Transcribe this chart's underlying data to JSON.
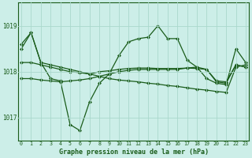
{
  "background_color": "#cceee8",
  "grid_color": "#aad8cc",
  "line_color": "#1a5c1a",
  "title": "Graphe pression niveau de la mer (hPa)",
  "ylim": [
    1016.5,
    1019.5
  ],
  "yticks": [
    1017,
    1018,
    1019
  ],
  "xticks": [
    0,
    1,
    2,
    3,
    4,
    5,
    6,
    7,
    8,
    9,
    10,
    11,
    12,
    13,
    14,
    15,
    16,
    17,
    18,
    19,
    20,
    21,
    22,
    23
  ],
  "line_a": [
    1018.6,
    1018.85,
    1018.2,
    1018.15,
    1018.1,
    1018.05,
    1018.0,
    1017.95,
    1017.9,
    1017.85,
    1017.82,
    1017.8,
    1017.78,
    1017.75,
    1017.73,
    1017.7,
    1017.68,
    1017.65,
    1017.62,
    1017.6,
    1017.57,
    1017.55,
    1018.1,
    1018.15
  ],
  "line_b": [
    1018.5,
    1018.85,
    1018.2,
    1017.85,
    1017.8,
    1016.85,
    1016.72,
    1017.35,
    1017.75,
    1017.95,
    1018.35,
    1018.65,
    1018.72,
    1018.75,
    1019.0,
    1018.72,
    1018.72,
    1018.25,
    1018.1,
    1017.85,
    1017.75,
    1017.72,
    1018.5,
    1018.2
  ],
  "line_c": [
    1018.2,
    1018.2,
    1018.15,
    1018.1,
    1018.05,
    1018.0,
    1017.98,
    1017.95,
    1018.0,
    1018.02,
    1018.05,
    1018.07,
    1018.08,
    1018.08,
    1018.07,
    1018.07,
    1018.07,
    1018.08,
    1018.1,
    1018.05,
    1017.8,
    1017.78,
    1018.15,
    1018.1
  ],
  "line_d": [
    1017.85,
    1017.85,
    1017.82,
    1017.8,
    1017.78,
    1017.8,
    1017.82,
    1017.85,
    1017.9,
    1017.95,
    1018.0,
    1018.03,
    1018.05,
    1018.05,
    1018.05,
    1018.05,
    1018.05,
    1018.08,
    1018.07,
    1018.05,
    1017.78,
    1017.75,
    1018.15,
    1018.1
  ]
}
